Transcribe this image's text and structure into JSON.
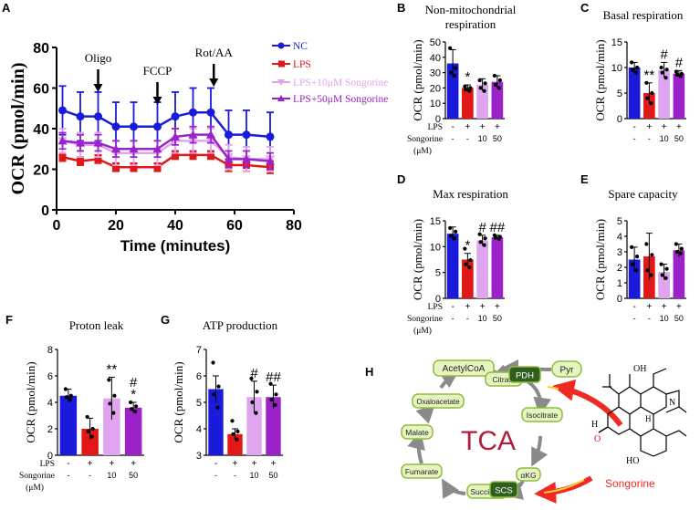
{
  "colors": {
    "nc": "#1a1adc",
    "lps": "#e01818",
    "s10": "#dfa5ef",
    "s50": "#9a22c8",
    "dot": "#000000",
    "tca_box": "#e6f4c2",
    "tca_box_border": "#8fbc3c",
    "tca_dark": "#2f5f1e",
    "tca_text": "#b01e3c",
    "arrow_gray": "#8a8a8a",
    "songorine_red": "#f02a22"
  },
  "chart_data": [
    {
      "panel": "A",
      "type": "line",
      "xlabel": "Time (minutes)",
      "ylabel": "OCR (pmol/min)",
      "xlim": [
        0,
        80
      ],
      "ylim": [
        0,
        80
      ],
      "xticks": [
        "0",
        "20",
        "40",
        "60",
        "80"
      ],
      "yticks": [
        "0",
        "20",
        "40",
        "60",
        "80"
      ],
      "x": [
        2,
        8,
        14,
        20,
        26,
        34,
        40,
        46,
        52,
        58,
        64,
        72
      ],
      "series": [
        {
          "name": "NC",
          "values": [
            49,
            46,
            46,
            41,
            41,
            41,
            46,
            48,
            48,
            37,
            37,
            36
          ],
          "err": [
            12,
            12,
            12,
            12,
            12,
            12,
            12,
            12,
            12,
            12,
            12,
            12
          ]
        },
        {
          "name": "LPS",
          "values": [
            26,
            24,
            25,
            21,
            21,
            21,
            27,
            27,
            27,
            22,
            22,
            21
          ],
          "err": [
            2,
            2,
            2,
            2,
            2,
            2,
            2,
            2,
            2,
            3,
            3,
            3
          ]
        },
        {
          "name": "LPS+10μM Songorine",
          "values": [
            34,
            32,
            32,
            28,
            28,
            28,
            34,
            34,
            34,
            26,
            25,
            25
          ],
          "err": [
            6,
            6,
            6,
            6,
            6,
            6,
            6,
            6,
            6,
            6,
            6,
            6
          ]
        },
        {
          "name": "LPS+50μM Songorine",
          "values": [
            34,
            33,
            33,
            30,
            30,
            30,
            36,
            37,
            37,
            25,
            25,
            24
          ],
          "err": [
            4,
            4,
            4,
            4,
            4,
            4,
            4,
            4,
            4,
            4,
            4,
            4
          ]
        }
      ],
      "annotations": [
        {
          "text": "Oligo",
          "x": 14
        },
        {
          "text": "FCCP",
          "x": 34
        },
        {
          "text": "Rot/AA",
          "x": 53
        }
      ]
    },
    {
      "panel": "B",
      "type": "bar",
      "title": "Non-mitochondrial respiration",
      "ylabel": "OCR (pmol/min)",
      "ylim": [
        0,
        50
      ],
      "yticks": [
        "0",
        "10",
        "20",
        "30",
        "40",
        "50"
      ],
      "values": [
        36,
        20,
        22,
        24
      ],
      "err": [
        9,
        2,
        4,
        4
      ],
      "sig": [
        "",
        "*",
        "",
        ""
      ],
      "points": [
        [
          46,
          33,
          30,
          28
        ],
        [
          21,
          20,
          19,
          18
        ],
        [
          25,
          23,
          20,
          18
        ],
        [
          28,
          25,
          22,
          20
        ]
      ]
    },
    {
      "panel": "C",
      "type": "bar",
      "title": "Basal respiration",
      "ylabel": "OCR (pmol/min)",
      "ylim": [
        0,
        15
      ],
      "yticks": [
        "0",
        "5",
        "10",
        "15"
      ],
      "values": [
        10,
        5,
        9.5,
        8.8
      ],
      "err": [
        1,
        2,
        1.5,
        0.6
      ],
      "sig": [
        "",
        "**",
        "#",
        "#"
      ],
      "points": [
        [
          11,
          10,
          9.5,
          9
        ],
        [
          7,
          5,
          4,
          3
        ],
        [
          10,
          9.6,
          9,
          8
        ],
        [
          9.2,
          8.8,
          8.6,
          8.3
        ]
      ]
    },
    {
      "panel": "D",
      "type": "bar",
      "title": "Max respiration",
      "ylabel": "OCR (pmol/min)",
      "ylim": [
        0,
        15
      ],
      "yticks": [
        "0",
        "5",
        "10",
        "15"
      ],
      "values": [
        12.5,
        7.5,
        11.2,
        11.8
      ],
      "err": [
        1.3,
        1.2,
        1,
        0.4
      ],
      "sig": [
        "",
        "*",
        "#",
        "##"
      ],
      "points": [
        [
          13.6,
          12.9,
          12.1,
          11.6
        ],
        [
          9.6,
          7.4,
          6.6,
          6
        ],
        [
          12.4,
          11.6,
          10.9,
          10.3
        ],
        [
          12.2,
          11.9,
          11.7,
          11.5
        ]
      ]
    },
    {
      "panel": "E",
      "type": "bar",
      "title": "Spare capacity",
      "ylabel": "OCR (pmol/min)",
      "ylim": [
        0,
        5
      ],
      "yticks": [
        "0",
        "1",
        "2",
        "3",
        "4",
        "5"
      ],
      "values": [
        2.5,
        2.7,
        1.7,
        3.1
      ],
      "err": [
        0.8,
        1.5,
        0.5,
        0.4
      ],
      "sig": [
        "",
        "",
        "",
        ""
      ],
      "points": [
        [
          3.3,
          2.7,
          2.2,
          1.8
        ],
        [
          3.5,
          2.8,
          1.8,
          1.5
        ],
        [
          2.2,
          1.9,
          1.5,
          1.3
        ],
        [
          3.5,
          3.2,
          3,
          2.9
        ]
      ]
    },
    {
      "panel": "F",
      "type": "bar",
      "title": "Proton leak",
      "ylabel": "OCR (pmol/min)",
      "ylim": [
        0,
        8
      ],
      "yticks": [
        "0",
        "2",
        "4",
        "6",
        "8"
      ],
      "values": [
        4.5,
        2,
        4.3,
        3.6
      ],
      "err": [
        0.5,
        0.8,
        1.6,
        0.4
      ],
      "sig": [
        "",
        "",
        "**",
        "#\n*"
      ],
      "points": [
        [
          5,
          4.5,
          4.4,
          4.2
        ],
        [
          2.9,
          2,
          1.8,
          1.4
        ],
        [
          5.7,
          4.5,
          3.9,
          3.2
        ],
        [
          4,
          3.7,
          3.5,
          3.3
        ]
      ]
    },
    {
      "panel": "G",
      "type": "bar",
      "title": "ATP production",
      "ylabel": "OCR (pmol/min)",
      "ylim": [
        3,
        7
      ],
      "yticks": [
        "3",
        "4",
        "5",
        "6",
        "7"
      ],
      "values": [
        5.5,
        3.8,
        5.2,
        5.2
      ],
      "err": [
        0.5,
        0.2,
        0.6,
        0.45
      ],
      "sig": [
        "",
        "",
        "#",
        "##"
      ],
      "points": [
        [
          6.5,
          5.6,
          5.3,
          4.8
        ],
        [
          4.3,
          3.9,
          3.8,
          3.6
        ],
        [
          5.9,
          5.4,
          5,
          4.6
        ],
        [
          5.7,
          5.3,
          5.1,
          4.9
        ]
      ]
    }
  ],
  "x_labels": {
    "lps_label": "LPS",
    "songorine_label": "Songorine",
    "unit_label": "(μM)",
    "lps_row": [
      "-",
      "+",
      "+",
      "+"
    ],
    "song_row": [
      "-",
      "-",
      "10",
      "50"
    ]
  },
  "panel_h": {
    "letter": "H",
    "center_label": "TCA",
    "metabolites": [
      "AcetylCoA",
      "Citrate",
      "Isocitrate",
      "αKG",
      "Succinate",
      "Fumarate",
      "Malate",
      "Oxaloacetate"
    ],
    "enzymes": [
      "PDH",
      "SCS"
    ],
    "pyr": "Pyr",
    "compound": "Songorine",
    "atoms": {
      "oh": "OH",
      "h1": "H",
      "h2": "H",
      "n": "N",
      "ho": "HO",
      "o": "O"
    }
  }
}
